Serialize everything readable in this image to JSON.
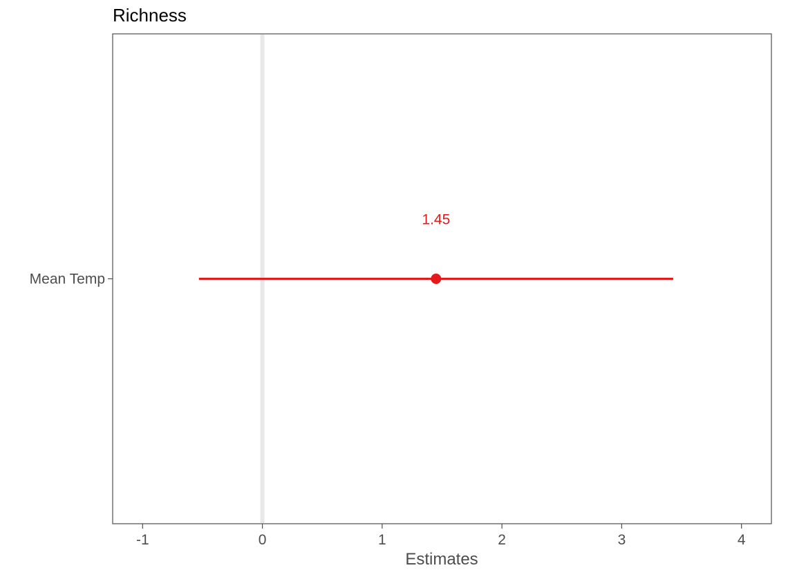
{
  "chart_data": {
    "type": "forest",
    "title": "Richness",
    "xlabel": "Estimates",
    "ylabel": "",
    "xlim": [
      -1.25,
      4.25
    ],
    "x_ticks": [
      -1,
      0,
      1,
      2,
      3,
      4
    ],
    "x_tick_labels": [
      "-1",
      "0",
      "1",
      "2",
      "3",
      "4"
    ],
    "reference_line": 0,
    "grid": false,
    "terms": [
      {
        "label": "Mean Temp",
        "estimate": 1.45,
        "ci_low": -0.53,
        "ci_high": 3.43,
        "value_label": "1.45"
      }
    ],
    "colors": {
      "estimate": "#e41a1c",
      "reference_line": "#e8e8e8",
      "panel_border": "#4d4d4d",
      "text": "#4d4d4d"
    }
  }
}
